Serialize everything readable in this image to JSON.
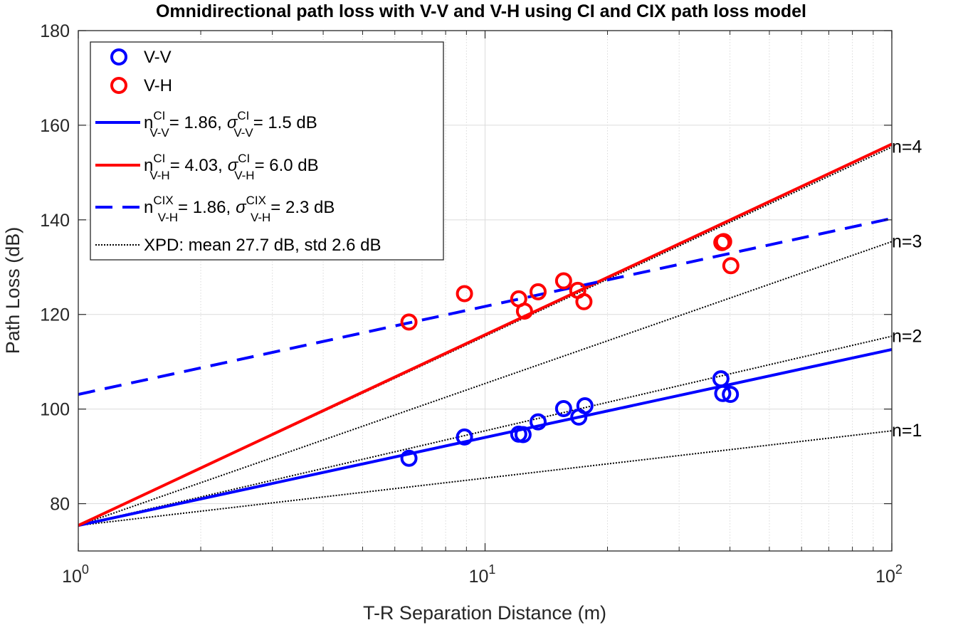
{
  "chart_data": {
    "type": "scatter",
    "title": "Omnidirectional path loss with V-V and V-H using CI and CIX path loss model",
    "xlabel": "T-R Separation Distance (m)",
    "ylabel": "Path Loss (dB)",
    "xscale": "log",
    "xlim": [
      1,
      100
    ],
    "ylim": [
      70,
      180
    ],
    "grid": true,
    "legend_position": "top-left",
    "x_ticks": [
      {
        "base": "10",
        "exp": "0",
        "value": 1
      },
      {
        "base": "10",
        "exp": "1",
        "value": 10
      },
      {
        "base": "10",
        "exp": "2",
        "value": 100
      }
    ],
    "y_ticks": [
      {
        "label": "80",
        "value": 80
      },
      {
        "label": "100",
        "value": 100
      },
      {
        "label": "120",
        "value": 120
      },
      {
        "label": "140",
        "value": 140
      },
      {
        "label": "160",
        "value": 160
      },
      {
        "label": "180",
        "value": 180
      }
    ],
    "series": [
      {
        "name": "V-V",
        "kind": "markers",
        "color": "#0000ff",
        "points": [
          {
            "x": 6.5,
            "y": 89.6
          },
          {
            "x": 8.9,
            "y": 94.1
          },
          {
            "x": 12.1,
            "y": 94.7
          },
          {
            "x": 12.4,
            "y": 94.6
          },
          {
            "x": 13.5,
            "y": 97.3
          },
          {
            "x": 15.6,
            "y": 100.1
          },
          {
            "x": 17.0,
            "y": 98.3
          },
          {
            "x": 17.6,
            "y": 100.7
          },
          {
            "x": 38.0,
            "y": 106.4
          },
          {
            "x": 38.4,
            "y": 103.3
          },
          {
            "x": 40.1,
            "y": 103.1
          }
        ]
      },
      {
        "name": "V-H",
        "kind": "markers",
        "color": "#ff0000",
        "points": [
          {
            "x": 6.5,
            "y": 118.4
          },
          {
            "x": 8.9,
            "y": 124.4
          },
          {
            "x": 12.1,
            "y": 123.3
          },
          {
            "x": 12.5,
            "y": 120.7
          },
          {
            "x": 13.5,
            "y": 124.8
          },
          {
            "x": 15.6,
            "y": 127.1
          },
          {
            "x": 16.9,
            "y": 125.1
          },
          {
            "x": 17.5,
            "y": 122.7
          },
          {
            "x": 38.2,
            "y": 135.2
          },
          {
            "x": 38.6,
            "y": 135.4
          },
          {
            "x": 40.2,
            "y": 130.3
          }
        ]
      },
      {
        "name": "CI V-V",
        "kind": "line",
        "style": "solid",
        "color": "#0000ff",
        "intercept": 75.4,
        "slope_per_decade": 18.6
      },
      {
        "name": "CI V-H",
        "kind": "line",
        "style": "solid",
        "color": "#ff0000",
        "intercept": 75.4,
        "slope_per_decade": 40.3
      },
      {
        "name": "CIX V-H",
        "kind": "line",
        "style": "dashed",
        "color": "#0000ff",
        "intercept": 103.1,
        "slope_per_decade": 18.6
      }
    ],
    "reference_lines": [
      {
        "label": "n=1",
        "intercept": 75.4,
        "slope_per_decade": 10
      },
      {
        "label": "n=2",
        "intercept": 75.4,
        "slope_per_decade": 20
      },
      {
        "label": "n=3",
        "intercept": 75.4,
        "slope_per_decade": 30
      },
      {
        "label": "n=4",
        "intercept": 75.4,
        "slope_per_decade": 40
      }
    ],
    "legend": [
      {
        "kind": "marker",
        "color": "#0000ff",
        "text": "V-V"
      },
      {
        "kind": "marker",
        "color": "#ff0000",
        "text": "V-H"
      },
      {
        "kind": "solid",
        "color": "#0000ff",
        "n_base": "n",
        "n_sup": "CI",
        "n_sub": "V-V",
        "n_value": "= 1.86,",
        "s_base": "σ",
        "s_sup": "CI",
        "s_sub": "V-V",
        "s_value": "= 1.5 dB"
      },
      {
        "kind": "solid",
        "color": "#ff0000",
        "n_base": "n",
        "n_sup": "CI",
        "n_sub": "V-H",
        "n_value": "= 4.03,",
        "s_base": "σ",
        "s_sup": "CI",
        "s_sub": "V-H",
        "s_value": "= 6.0 dB"
      },
      {
        "kind": "dashed",
        "color": "#0000ff",
        "n_base": "n",
        "n_sup": "CIX",
        "n_sub": "V-H",
        "n_value": "= 1.86,",
        "s_base": "σ",
        "s_sup": "CIX",
        "s_sub": "V-H",
        "s_value": "= 2.3 dB"
      },
      {
        "kind": "dotted",
        "color": "#000000",
        "text": "XPD: mean 27.7 dB, std 2.6 dB"
      }
    ]
  }
}
